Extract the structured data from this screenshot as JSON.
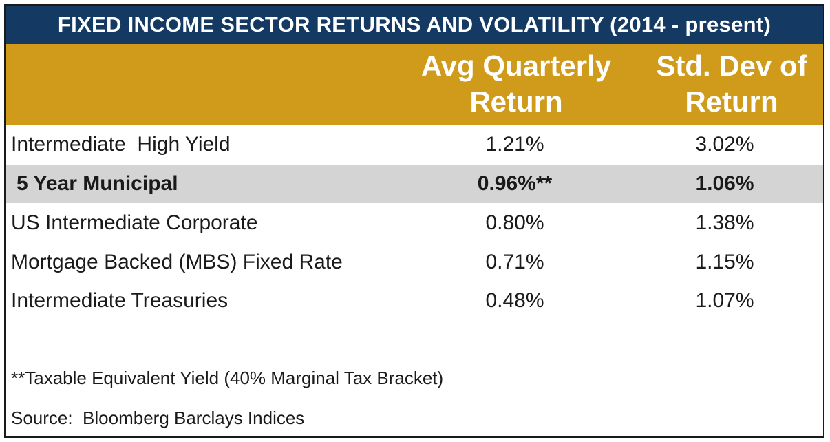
{
  "chart_data": {
    "type": "table",
    "title": "FIXED INCOME SECTOR RETURNS AND VOLATILITY (2014 - present)",
    "columns": [
      "",
      "Avg Quarterly Return",
      "Std. Dev of Return"
    ],
    "header": {
      "return_line1": "Avg Quarterly",
      "return_line2": "Return",
      "sd_line1": "Std. Dev of",
      "sd_line2": "Return"
    },
    "rows": [
      {
        "label": "Intermediate  High Yield",
        "avg_quarterly_return": "1.21%",
        "std_dev": "3.02%"
      },
      {
        "label": "5 Year Municipal",
        "avg_quarterly_return": "0.96%**",
        "std_dev": "1.06%"
      },
      {
        "label": "US Intermediate Corporate",
        "avg_quarterly_return": "0.80%",
        "std_dev": "1.38%"
      },
      {
        "label": "Mortgage Backed (MBS) Fixed Rate",
        "avg_quarterly_return": "0.71%",
        "std_dev": "1.15%"
      },
      {
        "label": "Intermediate Treasuries",
        "avg_quarterly_return": "0.48%",
        "std_dev": "1.07%"
      }
    ],
    "highlighted_row": "5 Year Municipal",
    "footnotes": {
      "note": "**Taxable Equivalent Yield (40% Marginal Tax Bracket)",
      "source": "Source:  Bloomberg Barclays Indices"
    }
  },
  "colors": {
    "title_bg": "#143a63",
    "header_bg": "#d09a1b",
    "highlight_bg": "#d4d4d4"
  }
}
